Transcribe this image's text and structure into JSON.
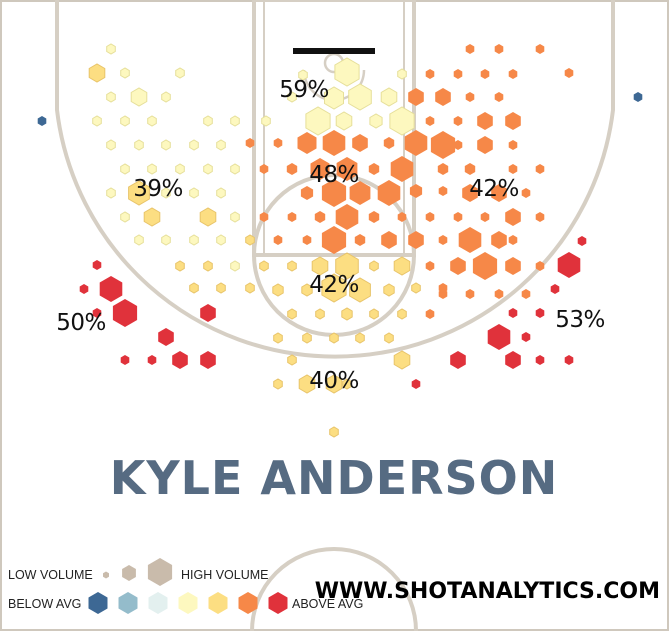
{
  "chart_data": {
    "type": "heatmap",
    "title": "",
    "player": "KYLE ANDERSON",
    "zone_labels": [
      {
        "zone": "restricted-area",
        "value": "59%"
      },
      {
        "zone": "paint",
        "value": "48%"
      },
      {
        "zone": "left-midrange",
        "value": "39%"
      },
      {
        "zone": "right-midrange",
        "value": "42%"
      },
      {
        "zone": "top-of-key",
        "value": "42%"
      },
      {
        "zone": "left-corner-three",
        "value": "50%"
      },
      {
        "zone": "right-corner-three",
        "value": "53%"
      },
      {
        "zone": "above-break-three",
        "value": "40%"
      }
    ],
    "color_scale": {
      "below_avg_strong": "#3d6894",
      "below_avg": "#94bccb",
      "slightly_below": "#e3f0ef",
      "average": "#fdf8bf",
      "slightly_above": "#fcde82",
      "above_avg": "#f68848",
      "above_avg_strong": "#e0323b"
    },
    "legend": {
      "low_volume": "LOW VOLUME",
      "high_volume": "HIGH VOLUME",
      "below_avg": "BELOW AVG",
      "above_avg": "ABOVE AVG"
    },
    "website": "WWW.SHOTANALYTICS.COM"
  }
}
